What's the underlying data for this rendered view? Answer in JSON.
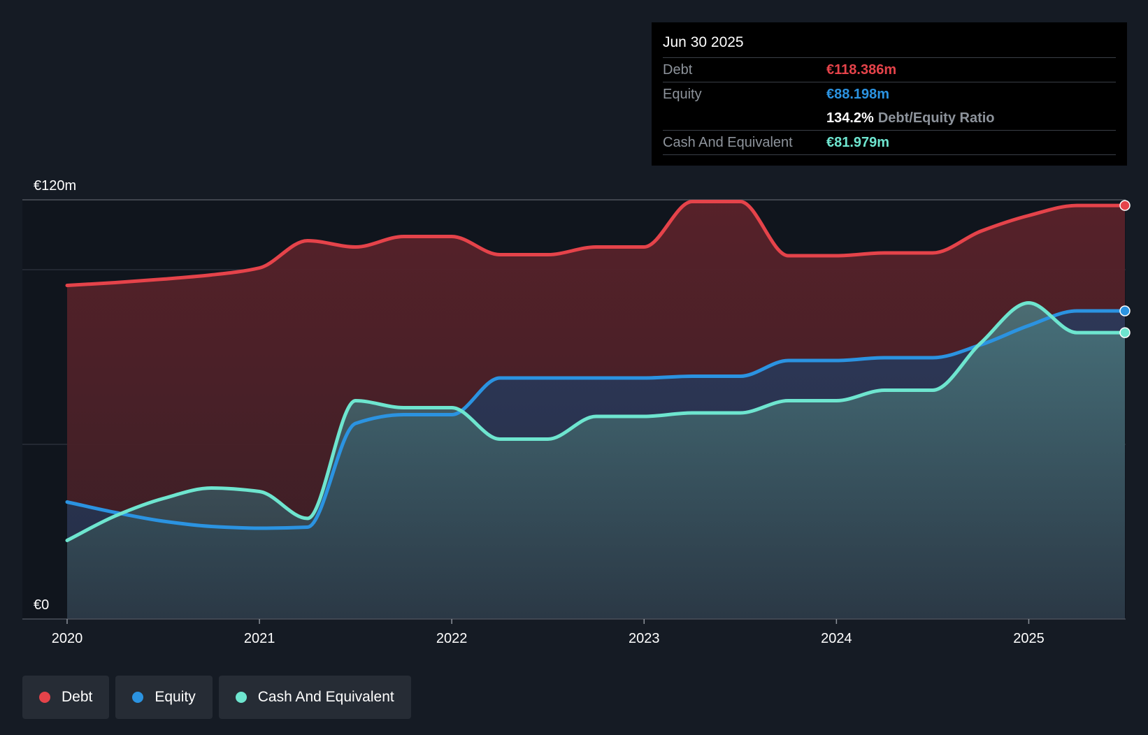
{
  "colors": {
    "background": "#151b24",
    "debt": "#e5434a",
    "equity": "#2b93e1",
    "cash": "#6ee5cf",
    "tooltip_bg": "#000000",
    "legend_bg": "#262c35"
  },
  "tooltip": {
    "date": "Jun 30 2025",
    "debt_label": "Debt",
    "debt_value": "€118.386m",
    "equity_label": "Equity",
    "equity_value": "€88.198m",
    "ratio_value": "134.2%",
    "ratio_label": "Debt/Equity Ratio",
    "cash_label": "Cash And Equivalent",
    "cash_value": "€81.979m"
  },
  "legend": {
    "items": [
      {
        "label": "Debt",
        "color": "#e5434a"
      },
      {
        "label": "Equity",
        "color": "#2b93e1"
      },
      {
        "label": "Cash And Equivalent",
        "color": "#6ee5cf"
      }
    ]
  },
  "chart_data": {
    "type": "area",
    "title": "",
    "xlabel": "",
    "ylabel": "",
    "ylim": [
      0,
      120
    ],
    "xlim": [
      2020.0,
      2025.5
    ],
    "y_tick_labels": [
      {
        "value": 120,
        "label": "€120m"
      },
      {
        "value": 0,
        "label": "€0"
      }
    ],
    "gridlines": [
      120,
      100,
      50
    ],
    "x_tick_labels": [
      {
        "value": 2020,
        "label": "2020"
      },
      {
        "value": 2021,
        "label": "2021"
      },
      {
        "value": 2022,
        "label": "2022"
      },
      {
        "value": 2023,
        "label": "2023"
      },
      {
        "value": 2024,
        "label": "2024"
      },
      {
        "value": 2025,
        "label": "2025"
      }
    ],
    "legend_position": "bottom-left",
    "series": [
      {
        "name": "Debt",
        "color": "#e5434a",
        "points": [
          [
            2020.0,
            95.5
          ],
          [
            2020.25,
            96.3
          ],
          [
            2020.5,
            97.3
          ],
          [
            2020.75,
            98.5
          ],
          [
            2021.0,
            100.5
          ],
          [
            2021.25,
            108.3
          ],
          [
            2021.5,
            106.5
          ],
          [
            2021.75,
            109.5
          ],
          [
            2022.0,
            109.5
          ],
          [
            2022.25,
            104.3
          ],
          [
            2022.5,
            104.3
          ],
          [
            2022.75,
            106.5
          ],
          [
            2023.0,
            106.5
          ],
          [
            2023.25,
            119.5
          ],
          [
            2023.5,
            119.5
          ],
          [
            2023.75,
            104.0
          ],
          [
            2024.0,
            104.0
          ],
          [
            2024.25,
            104.8
          ],
          [
            2024.5,
            104.8
          ],
          [
            2024.75,
            111.0
          ],
          [
            2025.0,
            115.5
          ],
          [
            2025.25,
            118.386
          ],
          [
            2025.5,
            118.386
          ]
        ]
      },
      {
        "name": "Equity",
        "color": "#2b93e1",
        "points": [
          [
            2020.0,
            33.5
          ],
          [
            2020.25,
            30.5
          ],
          [
            2020.5,
            28.0
          ],
          [
            2020.75,
            26.5
          ],
          [
            2021.0,
            26.0
          ],
          [
            2021.25,
            26.3
          ],
          [
            2021.5,
            56.0
          ],
          [
            2021.75,
            58.5
          ],
          [
            2022.0,
            58.5
          ],
          [
            2022.25,
            69.0
          ],
          [
            2022.5,
            69.0
          ],
          [
            2022.75,
            69.0
          ],
          [
            2023.0,
            69.0
          ],
          [
            2023.25,
            69.5
          ],
          [
            2023.5,
            69.5
          ],
          [
            2023.75,
            74.0
          ],
          [
            2024.0,
            74.0
          ],
          [
            2024.25,
            74.8
          ],
          [
            2024.5,
            74.8
          ],
          [
            2024.75,
            78.5
          ],
          [
            2025.0,
            84.0
          ],
          [
            2025.25,
            88.198
          ],
          [
            2025.5,
            88.198
          ]
        ]
      },
      {
        "name": "Cash And Equivalent",
        "color": "#6ee5cf",
        "points": [
          [
            2020.0,
            22.5
          ],
          [
            2020.25,
            29.5
          ],
          [
            2020.5,
            34.5
          ],
          [
            2020.75,
            37.5
          ],
          [
            2021.0,
            36.5
          ],
          [
            2021.25,
            28.8
          ],
          [
            2021.5,
            62.5
          ],
          [
            2021.75,
            60.5
          ],
          [
            2022.0,
            60.5
          ],
          [
            2022.25,
            51.5
          ],
          [
            2022.5,
            51.5
          ],
          [
            2022.75,
            58.0
          ],
          [
            2023.0,
            58.0
          ],
          [
            2023.25,
            59.0
          ],
          [
            2023.5,
            59.0
          ],
          [
            2023.75,
            62.5
          ],
          [
            2024.0,
            62.5
          ],
          [
            2024.25,
            65.5
          ],
          [
            2024.5,
            65.5
          ],
          [
            2024.75,
            79.0
          ],
          [
            2025.0,
            90.5
          ],
          [
            2025.25,
            81.979
          ],
          [
            2025.5,
            81.979
          ]
        ]
      }
    ]
  }
}
